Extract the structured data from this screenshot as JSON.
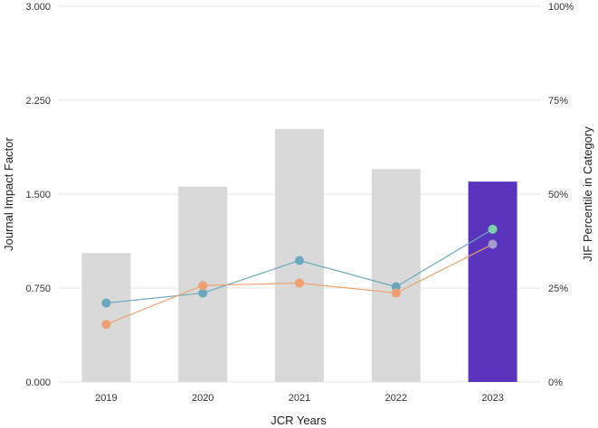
{
  "chart_data": {
    "type": "bar",
    "categories": [
      "2019",
      "2020",
      "2021",
      "2022",
      "2023"
    ],
    "bar_values": [
      1.03,
      1.56,
      2.02,
      1.7,
      1.6
    ],
    "bar_colors": [
      "#d9d9d9",
      "#d9d9d9",
      "#d9d9d9",
      "#d9d9d9",
      "#5b34bd"
    ],
    "series": [
      {
        "values": [
          0.63,
          0.71,
          0.97,
          0.76,
          1.22
        ],
        "color": "#6aa9bd"
      },
      {
        "values": [
          0.46,
          0.77,
          0.79,
          0.71,
          1.1
        ],
        "color": "#f0a070"
      }
    ],
    "last_point_colors": [
      "#7ecfae",
      "#a59bd0"
    ],
    "xlabel": "JCR Years",
    "ylabel": "Journal Impact Factor",
    "y2label": "JIF Percentile in Category",
    "ylim": [
      0,
      3
    ],
    "y2lim": [
      0,
      100
    ],
    "yticks": [
      "0.000",
      "0.750",
      "1.500",
      "2.250",
      "3.000"
    ],
    "y2ticks": [
      "0%",
      "25%",
      "50%",
      "75%",
      "100%"
    ],
    "grid": true
  }
}
